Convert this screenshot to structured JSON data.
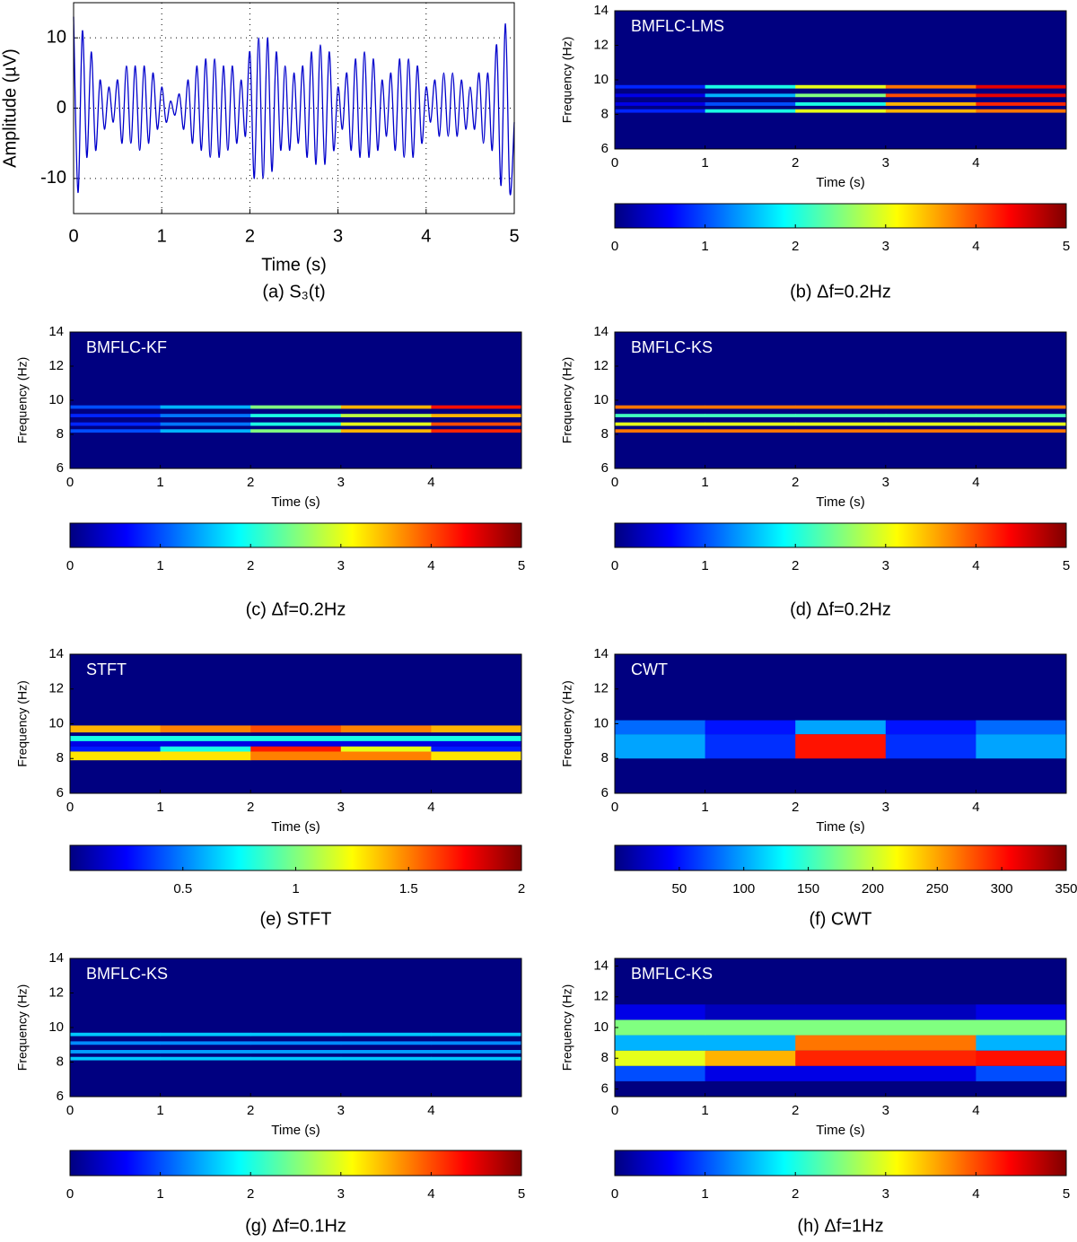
{
  "chart_data": [
    {
      "type": "line",
      "caption": "(a) S₃(t)",
      "xlabel": "Time (s)",
      "ylabel": "Amplitude (µV)",
      "color": "#0000cc",
      "xlim": [
        0,
        5
      ],
      "ylim": [
        -15,
        15
      ],
      "xticks": [
        0,
        1,
        2,
        3,
        4,
        5
      ],
      "yticks": [
        -10,
        0,
        10
      ],
      "grid": true,
      "x": [
        0,
        0.05,
        0.1,
        0.15,
        0.2,
        0.25,
        0.3,
        0.35,
        0.4,
        0.45,
        0.5,
        0.55,
        0.6,
        0.65,
        0.7,
        0.75,
        0.8,
        0.85,
        0.9,
        0.95,
        1,
        1.05,
        1.1,
        1.15,
        1.2,
        1.25,
        1.3,
        1.35,
        1.4,
        1.45,
        1.5,
        1.55,
        1.6,
        1.65,
        1.7,
        1.75,
        1.8,
        1.85,
        1.9,
        1.95,
        2,
        2.05,
        2.1,
        2.15,
        2.2,
        2.25,
        2.3,
        2.35,
        2.4,
        2.45,
        2.5,
        2.55,
        2.6,
        2.65,
        2.7,
        2.75,
        2.8,
        2.85,
        2.9,
        2.95,
        3,
        3.05,
        3.1,
        3.15,
        3.2,
        3.25,
        3.3,
        3.35,
        3.4,
        3.45,
        3.5,
        3.55,
        3.6,
        3.65,
        3.7,
        3.75,
        3.8,
        3.85,
        3.9,
        3.95,
        4,
        4.05,
        4.1,
        4.15,
        4.2,
        4.25,
        4.3,
        4.35,
        4.4,
        4.45,
        4.5,
        4.55,
        4.6,
        4.65,
        4.7,
        4.75,
        4.8,
        4.85,
        4.9,
        4.95,
        5
      ],
      "values": [
        13,
        -12,
        11,
        -7,
        8,
        -6,
        4,
        -3,
        3,
        -2,
        4,
        -5,
        6,
        -5,
        6,
        -6,
        6,
        -5,
        5,
        -3,
        3,
        -2,
        1,
        -1,
        2,
        -3,
        4,
        -5,
        6,
        -6,
        7,
        -7,
        7,
        -7,
        6,
        -6,
        6,
        -5,
        4,
        -4,
        8,
        -10,
        10,
        -10,
        10,
        -9,
        8,
        -6,
        6,
        -6,
        5,
        -5,
        6,
        -7,
        8,
        -8,
        9,
        -8,
        8,
        -6,
        3,
        -3,
        5,
        -6,
        7,
        -7,
        8,
        -7,
        7,
        -6,
        4,
        -4,
        5,
        -6,
        7,
        -7,
        7,
        -7,
        6,
        -5,
        3,
        -2,
        4,
        -4,
        5,
        -4,
        5,
        -4,
        4,
        -3,
        3,
        -3,
        5,
        -5,
        5,
        -6,
        9,
        -11,
        12,
        -12,
        -2
      ]
    },
    {
      "type": "heatmap",
      "label": "BMFLC-LMS",
      "caption": "(b)  Δf=0.2Hz",
      "xlabel": "Time (s)",
      "ylabel": "Frequency (Hz)",
      "colormap": "jet",
      "xlim": [
        0,
        5
      ],
      "ylim": [
        6,
        14
      ],
      "xticks": [
        0,
        1,
        2,
        3,
        4
      ],
      "yticks": [
        6,
        8,
        10,
        12,
        14
      ],
      "x": [
        0,
        1,
        2,
        3,
        4,
        5
      ],
      "y": [
        [
          8.1,
          8.3
        ],
        [
          8.5,
          8.7
        ],
        [
          9.0,
          9.2
        ],
        [
          9.5,
          9.7
        ]
      ],
      "z": [
        [
          0.8,
          2,
          3,
          3.5,
          3.8
        ],
        [
          0.5,
          1,
          2,
          3.5,
          4.2
        ],
        [
          0.5,
          1.5,
          2.5,
          4,
          4.5
        ],
        [
          0.8,
          2,
          3,
          3.8,
          4.5
        ]
      ],
      "clim": [
        0,
        5
      ],
      "cticks": [
        0,
        1,
        2,
        3,
        4,
        5
      ]
    },
    {
      "type": "heatmap",
      "label": "BMFLC-KF",
      "caption": "(c) Δf=0.2Hz",
      "xlabel": "Time (s)",
      "ylabel": "Frequency (Hz)",
      "colormap": "jet",
      "xlim": [
        0,
        5
      ],
      "ylim": [
        6,
        14
      ],
      "xticks": [
        0,
        1,
        2,
        3,
        4
      ],
      "yticks": [
        6,
        8,
        10,
        12,
        14
      ],
      "x": [
        0,
        1,
        2,
        3,
        4,
        5
      ],
      "y": [
        [
          8.1,
          8.3
        ],
        [
          8.5,
          8.7
        ],
        [
          9.0,
          9.2
        ],
        [
          9.5,
          9.7
        ]
      ],
      "z": [
        [
          1,
          1.5,
          2.5,
          3.5,
          4.2
        ],
        [
          0.8,
          1.2,
          2,
          3,
          4
        ],
        [
          0.8,
          1.2,
          2,
          2.8,
          3.5
        ],
        [
          1,
          1.5,
          2.5,
          3.5,
          4.3
        ]
      ],
      "clim": [
        0,
        5
      ],
      "cticks": [
        0,
        1,
        2,
        3,
        4,
        5
      ]
    },
    {
      "type": "heatmap",
      "label": "BMFLC-KS",
      "caption": "(d) Δf=0.2Hz",
      "xlabel": "Time (s)",
      "ylabel": "Frequency (Hz)",
      "colormap": "jet",
      "xlim": [
        0,
        5
      ],
      "ylim": [
        6,
        14
      ],
      "xticks": [
        0,
        1,
        2,
        3,
        4
      ],
      "yticks": [
        6,
        8,
        10,
        12,
        14
      ],
      "x": [
        0,
        1,
        2,
        3,
        4,
        5
      ],
      "y": [
        [
          8.1,
          8.3
        ],
        [
          8.5,
          8.7
        ],
        [
          9.0,
          9.2
        ],
        [
          9.5,
          9.7
        ]
      ],
      "z": [
        [
          3.8,
          3.8,
          3.8,
          3.8,
          3.8
        ],
        [
          3,
          3,
          3,
          3,
          3
        ],
        [
          2.2,
          2.2,
          2.2,
          2.2,
          2.2
        ],
        [
          3.8,
          3.8,
          3.8,
          3.8,
          3.8
        ]
      ],
      "clim": [
        0,
        5
      ],
      "cticks": [
        0,
        1,
        2,
        3,
        4,
        5
      ]
    },
    {
      "type": "heatmap",
      "label": "STFT",
      "caption": "(e) STFT",
      "xlabel": "Time (s)",
      "ylabel": "Frequency (Hz)",
      "colormap": "jet",
      "xlim": [
        0,
        5
      ],
      "ylim": [
        6,
        14
      ],
      "xticks": [
        0,
        1,
        2,
        3,
        4
      ],
      "yticks": [
        6,
        8,
        10,
        12,
        14
      ],
      "x": [
        0,
        1,
        2,
        3,
        4,
        5
      ],
      "y": [
        [
          7.9,
          8.4
        ],
        [
          8.4,
          8.7
        ],
        [
          8.7,
          9.0
        ],
        [
          9.0,
          9.3
        ],
        [
          9.5,
          9.9
        ]
      ],
      "z": [
        [
          1.3,
          1.3,
          1.5,
          1.5,
          1.3
        ],
        [
          0.3,
          0.8,
          1.7,
          1.2,
          0.3
        ],
        [
          0.2,
          0.2,
          0.2,
          0.2,
          0.2
        ],
        [
          0.8,
          0.8,
          0.8,
          0.8,
          0.8
        ],
        [
          1.4,
          1.5,
          1.6,
          1.5,
          1.4
        ]
      ],
      "clim": [
        0,
        2
      ],
      "cticks": [
        0.5,
        1,
        1.5,
        2
      ]
    },
    {
      "type": "heatmap",
      "label": "CWT",
      "caption": "(f) CWT",
      "xlabel": "Time (s)",
      "ylabel": "Frequency (Hz)",
      "colormap": "jet",
      "xlim": [
        0,
        5
      ],
      "ylim": [
        6,
        14
      ],
      "xticks": [
        0,
        1,
        2,
        3,
        4
      ],
      "yticks": [
        6,
        8,
        10,
        12,
        14
      ],
      "x": [
        0,
        1,
        2,
        3,
        4,
        5
      ],
      "y": [
        [
          8,
          9.4
        ],
        [
          9.4,
          10.2
        ]
      ],
      "z": [
        [
          100,
          60,
          300,
          60,
          100
        ],
        [
          80,
          50,
          100,
          50,
          80
        ]
      ],
      "clim": [
        0,
        350
      ],
      "cticks": [
        50,
        100,
        150,
        200,
        250,
        300,
        350
      ]
    },
    {
      "type": "heatmap",
      "label": "BMFLC-KS",
      "caption": "(g) Δf=0.1Hz",
      "xlabel": "Time (s)",
      "ylabel": "Frequency (Hz)",
      "colormap": "jet",
      "xlim": [
        0,
        5
      ],
      "ylim": [
        6,
        14
      ],
      "xticks": [
        0,
        1,
        2,
        3,
        4
      ],
      "yticks": [
        6,
        8,
        10,
        12,
        14
      ],
      "x": [
        0,
        1,
        2,
        3,
        4,
        5
      ],
      "y": [
        [
          8.1,
          8.3
        ],
        [
          8.5,
          8.7
        ],
        [
          9.0,
          9.2
        ],
        [
          9.5,
          9.7
        ]
      ],
      "z": [
        [
          1.6,
          1.6,
          1.6,
          1.6,
          1.6
        ],
        [
          1.4,
          1.4,
          1.4,
          1.4,
          1.4
        ],
        [
          1.3,
          1.3,
          1.3,
          1.3,
          1.3
        ],
        [
          1.6,
          1.6,
          1.6,
          1.6,
          1.6
        ]
      ],
      "clim": [
        0,
        5
      ],
      "cticks": [
        0,
        1,
        2,
        3,
        4,
        5
      ]
    },
    {
      "type": "heatmap",
      "label": "BMFLC-KS",
      "caption": "(h) Δf=1Hz",
      "xlabel": "Time (s)",
      "ylabel": "Frequency (Hz)",
      "colormap": "jet",
      "xlim": [
        0,
        5
      ],
      "ylim": [
        5.5,
        14.5
      ],
      "xticks": [
        0,
        1,
        2,
        3,
        4
      ],
      "yticks": [
        6,
        8,
        10,
        12,
        14
      ],
      "x": [
        0,
        1,
        2,
        3,
        4,
        5
      ],
      "y": [
        [
          6.5,
          7.5
        ],
        [
          7.5,
          8.5
        ],
        [
          8.5,
          9.5
        ],
        [
          9.5,
          10.5
        ],
        [
          10.5,
          11.5
        ]
      ],
      "z": [
        [
          1,
          0.5,
          0.5,
          0.5,
          1
        ],
        [
          3,
          3.5,
          4.2,
          4.2,
          4.3
        ],
        [
          1.5,
          1.5,
          3.8,
          3.8,
          1.5
        ],
        [
          2.5,
          2.5,
          2.5,
          2.5,
          2.5
        ],
        [
          0.5,
          0.3,
          0.3,
          0.3,
          0.5
        ]
      ],
      "clim": [
        0,
        5
      ],
      "cticks": [
        0,
        1,
        2,
        3,
        4,
        5
      ]
    }
  ]
}
